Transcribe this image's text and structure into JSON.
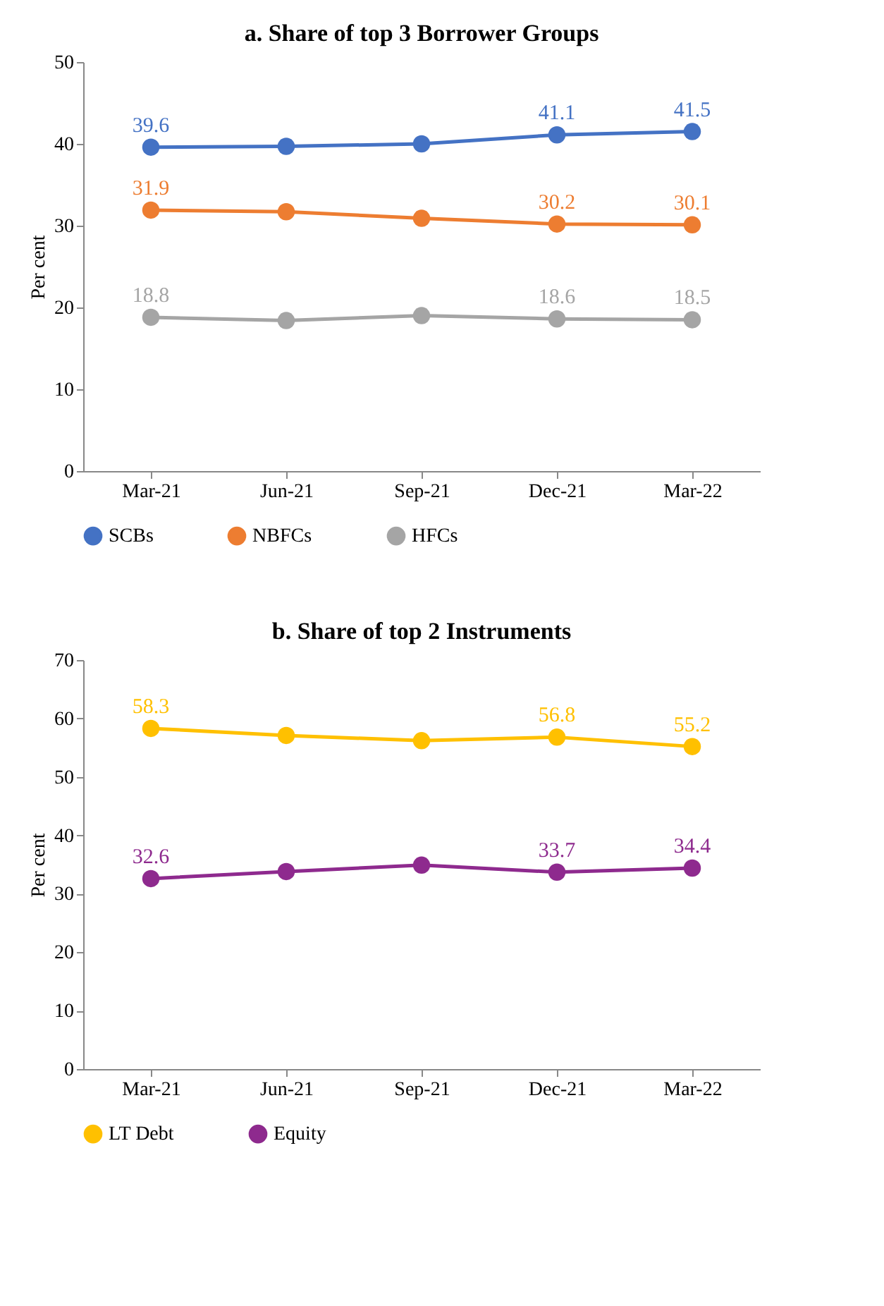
{
  "chart_data": [
    {
      "type": "line",
      "title": "a. Share of top 3 Borrower Groups",
      "ylabel": "Per cent",
      "categories": [
        "Mar-21",
        "Jun-21",
        "Sep-21",
        "Dec-21",
        "Mar-22"
      ],
      "ylim": [
        0,
        50
      ],
      "yticks": [
        0,
        10,
        20,
        30,
        40,
        50
      ],
      "grid": false,
      "legend": "bottom",
      "marker": "circle",
      "line_style": "solid",
      "series": [
        {
          "name": "SCBs",
          "color": "#4472c4",
          "values": [
            39.6,
            39.7,
            40.0,
            41.1,
            41.5
          ],
          "value_labels": [
            "39.6",
            null,
            null,
            "41.1",
            "41.5"
          ]
        },
        {
          "name": "NBFCs",
          "color": "#ed7d31",
          "values": [
            31.9,
            31.7,
            30.9,
            30.2,
            30.1
          ],
          "value_labels": [
            "31.9",
            null,
            null,
            "30.2",
            "30.1"
          ]
        },
        {
          "name": "HFCs",
          "color": "#a5a5a5",
          "values": [
            18.8,
            18.4,
            19.0,
            18.6,
            18.5
          ],
          "value_labels": [
            "18.8",
            null,
            null,
            "18.6",
            "18.5"
          ]
        }
      ]
    },
    {
      "type": "line",
      "title": "b. Share of top 2 Instruments",
      "ylabel": "Per cent",
      "categories": [
        "Mar-21",
        "Jun-21",
        "Sep-21",
        "Dec-21",
        "Mar-22"
      ],
      "ylim": [
        0,
        70
      ],
      "yticks": [
        0,
        10,
        20,
        30,
        40,
        50,
        60,
        70
      ],
      "grid": false,
      "legend": "bottom",
      "marker": "circle",
      "line_style": "solid",
      "series": [
        {
          "name": "LT Debt",
          "color": "#ffc000",
          "values": [
            58.3,
            57.1,
            56.2,
            56.8,
            55.2
          ],
          "value_labels": [
            "58.3",
            null,
            null,
            "56.8",
            "55.2"
          ]
        },
        {
          "name": "Equity",
          "color": "#8e2a8e",
          "values": [
            32.6,
            33.8,
            34.9,
            33.7,
            34.4
          ],
          "value_labels": [
            "32.6",
            null,
            null,
            "33.7",
            "34.4"
          ]
        }
      ]
    }
  ]
}
